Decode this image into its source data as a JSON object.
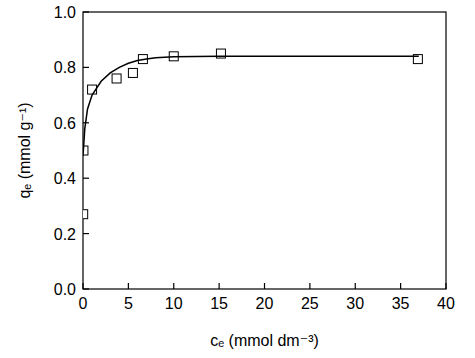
{
  "chart_data": {
    "type": "scatter",
    "x_label": "cₑ (mmol dm⁻³)",
    "y_label": "qₑ (mmol g⁻¹)",
    "xlim": [
      0,
      40
    ],
    "ylim": [
      0,
      1.0
    ],
    "xticks": [
      0,
      5,
      10,
      15,
      20,
      25,
      30,
      35,
      40
    ],
    "yticks": [
      {
        "value": 0,
        "label": "0.0"
      },
      {
        "value": 0.2,
        "label": "0.2"
      },
      {
        "value": 0.4,
        "label": "0.4"
      },
      {
        "value": 0.6,
        "label": "0.6"
      },
      {
        "value": 0.8,
        "label": "0.8"
      },
      {
        "value": 1.0,
        "label": "1.0"
      }
    ],
    "grid": false,
    "series": [
      {
        "type": "scatter",
        "marker": "square",
        "color": "#000000",
        "x": [
          0.02,
          0.05,
          1.0,
          3.7,
          5.5,
          6.6,
          10.0,
          15.2,
          36.9
        ],
        "values": [
          0.27,
          0.5,
          0.72,
          0.76,
          0.78,
          0.83,
          0.84,
          0.85,
          0.83
        ]
      },
      {
        "type": "line",
        "line_style": "solid",
        "color": "#000000",
        "x": [
          0,
          0.2,
          0.5,
          1,
          2,
          3,
          4,
          5,
          6,
          7,
          8,
          10,
          15,
          25,
          37
        ],
        "values": [
          0.48,
          0.58,
          0.65,
          0.7,
          0.75,
          0.78,
          0.8,
          0.815,
          0.825,
          0.83,
          0.835,
          0.838,
          0.84,
          0.84,
          0.84
        ]
      }
    ]
  }
}
